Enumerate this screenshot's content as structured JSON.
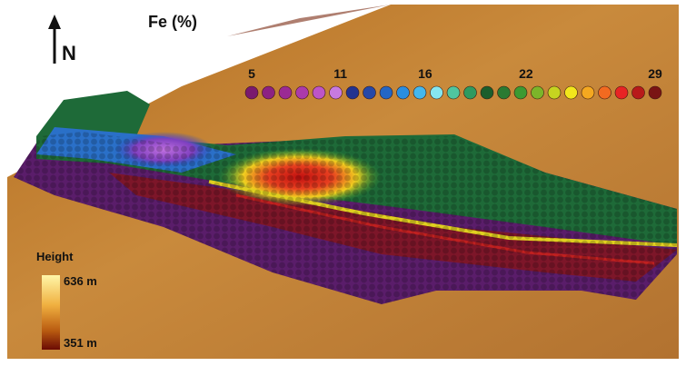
{
  "title": "Fe (%)",
  "north": "N",
  "fe_legend": {
    "labels": [
      "5",
      "11",
      "16",
      "22",
      "29"
    ],
    "colors": [
      "#7a1a6e",
      "#8c2282",
      "#9b2a94",
      "#ab3aab",
      "#bd55c8",
      "#c77ae0",
      "#233390",
      "#2548a8",
      "#2466c4",
      "#2a8ee0",
      "#45b8ee",
      "#86e6f0",
      "#4fc5a0",
      "#2f9a60",
      "#1b5e2c",
      "#2a7a32",
      "#3c9a32",
      "#7cb52a",
      "#c6d420",
      "#f2e61c",
      "#f4a820",
      "#f26a20",
      "#e82424",
      "#b81a1a",
      "#7a1414"
    ]
  },
  "height_legend": {
    "title": "Height",
    "max": "636 m",
    "min": "351 m"
  }
}
